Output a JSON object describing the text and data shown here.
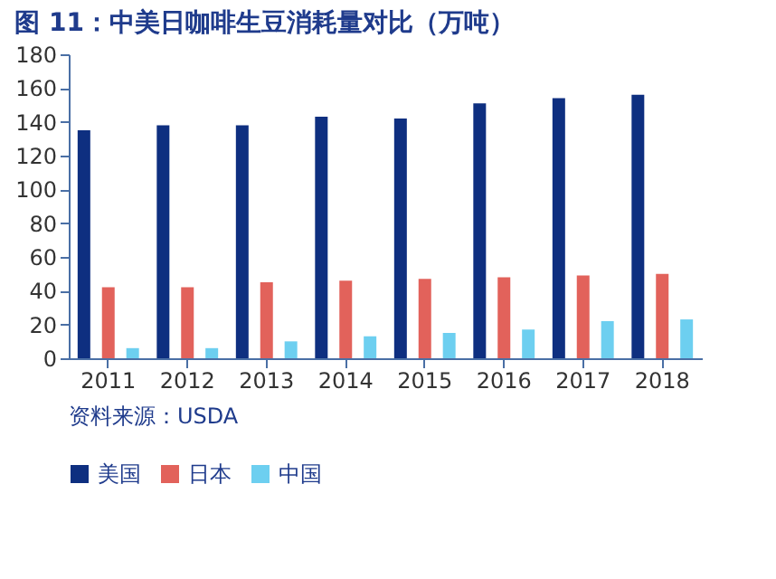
{
  "chart_data": {
    "type": "bar",
    "title": "图 11：中美日咖啡生豆消耗量对比（万吨）",
    "categories": [
      "2011",
      "2012",
      "2013",
      "2014",
      "2015",
      "2016",
      "2017",
      "2018"
    ],
    "series": [
      {
        "name": "美国",
        "color": "#0e2f80",
        "values": [
          135,
          138,
          138,
          143,
          142,
          151,
          154,
          156
        ]
      },
      {
        "name": "日本",
        "color": "#e2625b",
        "values": [
          42,
          42,
          45,
          46,
          47,
          48,
          49,
          50
        ]
      },
      {
        "name": "中国",
        "color": "#6dcff0",
        "values": [
          6,
          6,
          10,
          13,
          15,
          17,
          22,
          23
        ]
      }
    ],
    "ylim": [
      0,
      180
    ],
    "yticks": [
      0,
      20,
      40,
      60,
      80,
      100,
      120,
      140,
      160,
      180
    ],
    "grid": false,
    "legend": "bottom",
    "annotations": [
      "资料来源：USDA"
    ]
  }
}
